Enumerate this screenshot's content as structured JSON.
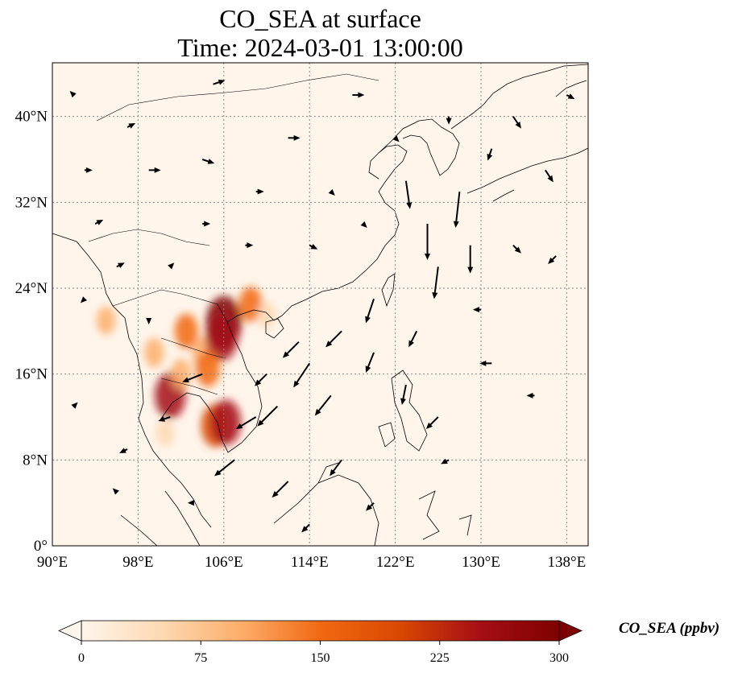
{
  "title": {
    "line1": "CO_SEA at surface",
    "line2": "Time: 2024-03-01 13:00:00"
  },
  "map": {
    "extent": {
      "lon": [
        90,
        140
      ],
      "lat": [
        0,
        45
      ]
    },
    "lon_ticks": [
      {
        "value": 90,
        "label": "90°E"
      },
      {
        "value": 98,
        "label": "98°E"
      },
      {
        "value": 106,
        "label": "106°E"
      },
      {
        "value": 114,
        "label": "114°E"
      },
      {
        "value": 122,
        "label": "122°E"
      },
      {
        "value": 130,
        "label": "130°E"
      },
      {
        "value": 138,
        "label": "138°E"
      }
    ],
    "lat_ticks": [
      {
        "value": 0,
        "label": "0°"
      },
      {
        "value": 8,
        "label": "8°N"
      },
      {
        "value": 16,
        "label": "16°N"
      },
      {
        "value": 24,
        "label": "24°N"
      },
      {
        "value": 32,
        "label": "32°N"
      },
      {
        "value": 40,
        "label": "40°N"
      }
    ],
    "gridlines": true,
    "background_color": "#fff5eb",
    "coastline_color": "#000000",
    "hotspots": [
      {
        "lon": 104.0,
        "lat": 18.0,
        "value": 110
      },
      {
        "lon": 102.5,
        "lat": 20.0,
        "value": 140
      },
      {
        "lon": 106.0,
        "lat": 20.8,
        "value": 300
      },
      {
        "lon": 105.8,
        "lat": 19.5,
        "value": 260
      },
      {
        "lon": 104.5,
        "lat": 16.5,
        "value": 150
      },
      {
        "lon": 101.0,
        "lat": 14.0,
        "value": 240
      },
      {
        "lon": 105.2,
        "lat": 11.2,
        "value": 210
      },
      {
        "lon": 106.2,
        "lat": 11.5,
        "value": 230
      },
      {
        "lon": 102.0,
        "lat": 16.0,
        "value": 100
      },
      {
        "lon": 99.5,
        "lat": 18.0,
        "value": 90
      },
      {
        "lon": 108.5,
        "lat": 22.5,
        "value": 140
      },
      {
        "lon": 95.0,
        "lat": 21.0,
        "value": 80
      },
      {
        "lon": 100.5,
        "lat": 10.5,
        "value": 70
      },
      {
        "lon": 110.0,
        "lat": 21.5,
        "value": 70
      }
    ],
    "wind_vectors": [
      {
        "lon": 114,
        "lat": 17,
        "u": -4,
        "v": -6
      },
      {
        "lon": 116,
        "lat": 14,
        "u": -4,
        "v": -5
      },
      {
        "lon": 111,
        "lat": 13,
        "u": -5,
        "v": -5
      },
      {
        "lon": 109,
        "lat": 12,
        "u": -5,
        "v": -3
      },
      {
        "lon": 120,
        "lat": 18,
        "u": -2,
        "v": -5
      },
      {
        "lon": 117,
        "lat": 20,
        "u": -4,
        "v": -4
      },
      {
        "lon": 113,
        "lat": 19,
        "u": -4,
        "v": -4
      },
      {
        "lon": 125,
        "lat": 30,
        "u": 0,
        "v": -9
      },
      {
        "lon": 126,
        "lat": 26,
        "u": -1,
        "v": -8
      },
      {
        "lon": 128,
        "lat": 33,
        "u": -1,
        "v": -9
      },
      {
        "lon": 123,
        "lat": 34,
        "u": 1,
        "v": -7
      },
      {
        "lon": 129,
        "lat": 28,
        "u": 0,
        "v": -7
      },
      {
        "lon": 120,
        "lat": 23,
        "u": -2,
        "v": -6
      },
      {
        "lon": 107,
        "lat": 8,
        "u": -5,
        "v": -4
      },
      {
        "lon": 112,
        "lat": 6,
        "u": -4,
        "v": -4
      },
      {
        "lon": 117,
        "lat": 8,
        "u": -3,
        "v": -4
      },
      {
        "lon": 123,
        "lat": 15,
        "u": -1,
        "v": -5
      },
      {
        "lon": 126,
        "lat": 12,
        "u": -3,
        "v": -3
      },
      {
        "lon": 104,
        "lat": 16,
        "u": -5,
        "v": -2
      },
      {
        "lon": 101,
        "lat": 12,
        "u": -3,
        "v": -1
      },
      {
        "lon": 97,
        "lat": 9,
        "u": -2,
        "v": -1
      },
      {
        "lon": 94,
        "lat": 30,
        "u": 2,
        "v": 1
      },
      {
        "lon": 99,
        "lat": 35,
        "u": 3,
        "v": 0
      },
      {
        "lon": 104,
        "lat": 36,
        "u": 3,
        "v": -1
      },
      {
        "lon": 112,
        "lat": 38,
        "u": 3,
        "v": 0
      },
      {
        "lon": 118,
        "lat": 42,
        "u": 3,
        "v": 0
      },
      {
        "lon": 105,
        "lat": 43,
        "u": 3,
        "v": 1
      },
      {
        "lon": 133,
        "lat": 40,
        "u": 2,
        "v": -3
      },
      {
        "lon": 136,
        "lat": 35,
        "u": 2,
        "v": -3
      },
      {
        "lon": 133,
        "lat": 28,
        "u": 2,
        "v": -2
      },
      {
        "lon": 137,
        "lat": 27,
        "u": -2,
        "v": -2
      },
      {
        "lon": 131,
        "lat": 17,
        "u": -3,
        "v": 0
      },
      {
        "lon": 135,
        "lat": 14,
        "u": -2,
        "v": 0
      },
      {
        "lon": 93,
        "lat": 23,
        "u": -1,
        "v": -1
      },
      {
        "lon": 96,
        "lat": 26,
        "u": 2,
        "v": 1
      },
      {
        "lon": 101,
        "lat": 26,
        "u": 1,
        "v": 1
      },
      {
        "lon": 108,
        "lat": 28,
        "u": 2,
        "v": 0
      },
      {
        "lon": 114,
        "lat": 28,
        "u": 2,
        "v": -1
      },
      {
        "lon": 119,
        "lat": 30,
        "u": 1,
        "v": -1
      },
      {
        "lon": 131,
        "lat": 37,
        "u": -1,
        "v": -3
      },
      {
        "lon": 109,
        "lat": 33,
        "u": 2,
        "v": 0
      },
      {
        "lon": 97,
        "lat": 39,
        "u": 2,
        "v": 1
      },
      {
        "lon": 130,
        "lat": 22,
        "u": -2,
        "v": 0
      },
      {
        "lon": 127,
        "lat": 8,
        "u": -2,
        "v": -1
      },
      {
        "lon": 120,
        "lat": 4,
        "u": -2,
        "v": -2
      },
      {
        "lon": 114,
        "lat": 2,
        "u": -2,
        "v": -2
      },
      {
        "lon": 96,
        "lat": 5,
        "u": -1,
        "v": 1
      },
      {
        "lon": 92,
        "lat": 13,
        "u": 1,
        "v": 1
      },
      {
        "lon": 99,
        "lat": 21,
        "u": 0,
        "v": -1
      },
      {
        "lon": 124,
        "lat": 20,
        "u": -2,
        "v": -4
      },
      {
        "lon": 138,
        "lat": 42,
        "u": 2,
        "v": -1
      },
      {
        "lon": 127,
        "lat": 40,
        "u": 0,
        "v": -2
      },
      {
        "lon": 122,
        "lat": 38,
        "u": 1,
        "v": -1
      },
      {
        "lon": 116,
        "lat": 33,
        "u": 1,
        "v": -1
      },
      {
        "lon": 104,
        "lat": 30,
        "u": 2,
        "v": 0
      },
      {
        "lon": 93,
        "lat": 35,
        "u": 2,
        "v": 0
      },
      {
        "lon": 92,
        "lat": 42,
        "u": -1,
        "v": 1
      },
      {
        "lon": 110,
        "lat": 16,
        "u": -3,
        "v": -3
      },
      {
        "lon": 103,
        "lat": 4,
        "u": -1,
        "v": 0
      }
    ]
  },
  "colorbar": {
    "label": "CO_SEA (ppbv)",
    "min": 0,
    "max": 300,
    "extend": "both",
    "ticks": [
      {
        "value": 0,
        "label": "0"
      },
      {
        "value": 75,
        "label": "75"
      },
      {
        "value": 150,
        "label": "150"
      },
      {
        "value": 225,
        "label": "225"
      },
      {
        "value": 300,
        "label": "300"
      }
    ],
    "colors": [
      "#fff5eb",
      "#fdd9b3",
      "#fdae6b",
      "#f16913",
      "#d94801",
      "#a50f15",
      "#7f0000"
    ]
  }
}
